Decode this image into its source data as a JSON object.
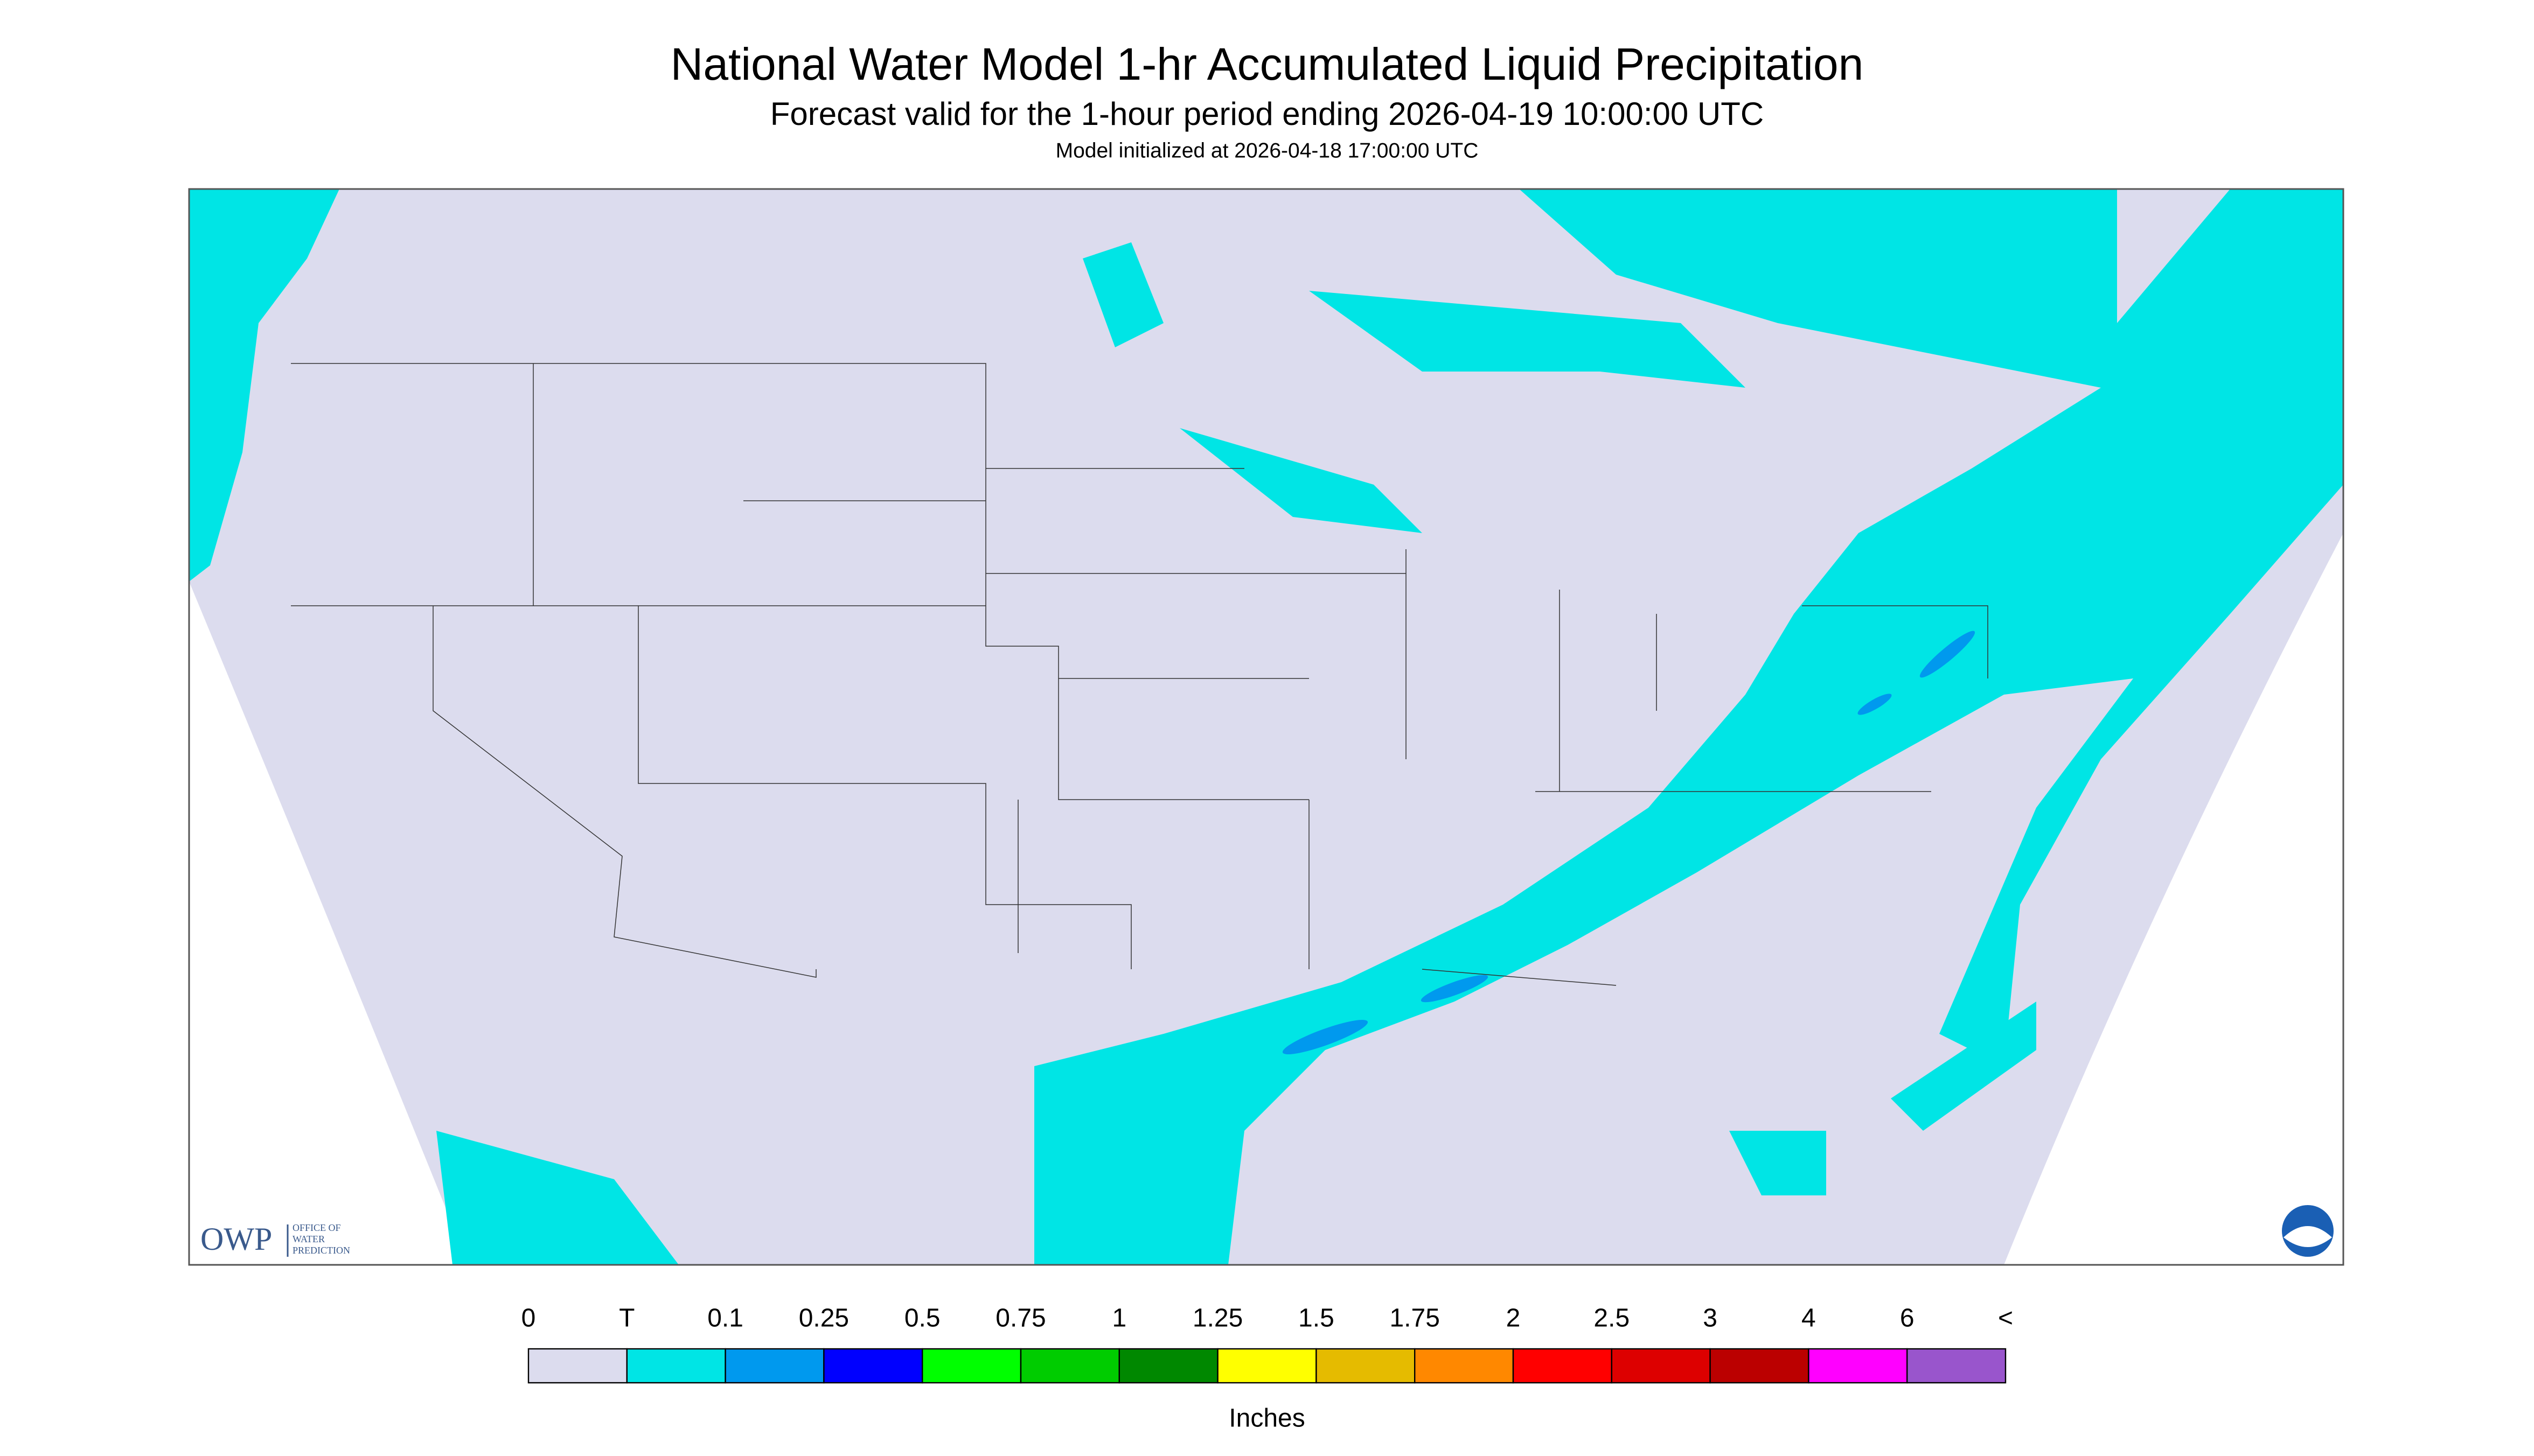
{
  "header": {
    "title": "National Water Model 1-hr Accumulated Liquid Precipitation",
    "subtitle": "Forecast valid for the 1-hour period ending 2026-04-19 10:00:00 UTC",
    "init": "Model initialized at 2026-04-18 17:00:00 UTC"
  },
  "logo": {
    "name": "OWP",
    "line1": "OFFICE OF",
    "line2": "WATER",
    "line3": "PREDICTION"
  },
  "legend": {
    "labels": [
      "0",
      "T",
      "0.1",
      "0.25",
      "0.5",
      "0.75",
      "1",
      "1.25",
      "1.5",
      "1.75",
      "2",
      "2.5",
      "3",
      "4",
      "6",
      "<"
    ],
    "colors": [
      "#dcdcee",
      "#00e5e5",
      "#0099ee",
      "#0000ff",
      "#00ff00",
      "#00cc00",
      "#008800",
      "#ffff00",
      "#e5bb00",
      "#ff8800",
      "#ff0000",
      "#dd0000",
      "#bb0000",
      "#ff00ff",
      "#9955cc"
    ],
    "unit": "Inches"
  }
}
